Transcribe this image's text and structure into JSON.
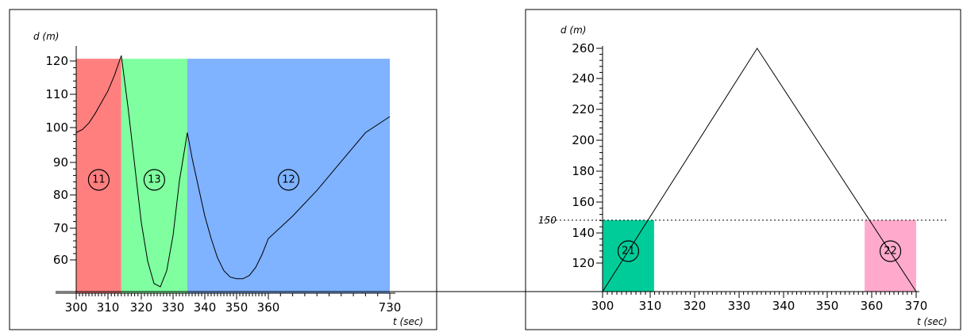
{
  "chart_data": [
    {
      "type": "line",
      "xlabel": "t (sec)",
      "ylabel": "d (m)",
      "xlim": [
        300,
        730
      ],
      "ylim": [
        50,
        125
      ],
      "x_tick_labels": [
        "300",
        "310",
        "320",
        "330",
        "340",
        "350",
        "360",
        "730"
      ],
      "y_tick_labels": [
        "60",
        "70",
        "80",
        "90",
        "100",
        "110",
        "120"
      ],
      "regions": [
        {
          "label": "11",
          "from": 300,
          "to": 314,
          "color": "#ff7f7f",
          "ymax": 123
        },
        {
          "label": "13",
          "from": 314,
          "to": 334.5,
          "color": "#7fff9f",
          "ymax": 123
        },
        {
          "label": "12",
          "from": 334.5,
          "to": 370,
          "color": "#7fb2ff",
          "ymax": 123
        }
      ],
      "series": [
        {
          "x": [
            300,
            302,
            304,
            306,
            308,
            310,
            312,
            314,
            316,
            318,
            320,
            322,
            324,
            326,
            328,
            330,
            332,
            334.5,
            336,
            338,
            340,
            342,
            344,
            346,
            348,
            350,
            352,
            354,
            356,
            358,
            360,
            362,
            364,
            366,
            368,
            370
          ],
          "y": [
            100,
            101,
            103,
            106,
            109.5,
            113,
            118,
            124,
            108,
            90,
            72,
            60,
            53,
            52,
            57,
            68,
            85,
            100,
            92,
            83,
            74,
            67,
            61,
            57,
            55,
            54.5,
            54.5,
            55.5,
            58,
            62,
            67,
            74,
            82,
            91,
            100,
            105
          ]
        }
      ]
    },
    {
      "type": "line",
      "xlabel": "t (sec)",
      "ylabel": "d (m)",
      "xlim": [
        297.5,
        372
      ],
      "ylim": [
        100,
        268
      ],
      "x_tick_labels": [
        "300",
        "310",
        "320",
        "330",
        "340",
        "350",
        "360",
        "370"
      ],
      "y_tick_labels": [
        "120",
        "140",
        "160",
        "180",
        "200",
        "220",
        "240",
        "260"
      ],
      "reference_line": {
        "y": 150,
        "label": "150"
      },
      "regions": [
        {
          "label": "21",
          "from": 300,
          "to": 311.5,
          "color": "#00cc99",
          "ymax": 150
        },
        {
          "label": "22",
          "from": 358.5,
          "to": 370,
          "color": "#ffaacc",
          "ymax": 150
        }
      ],
      "series": [
        {
          "x": [
            297.5,
            300,
            334.5,
            370
          ],
          "y": [
            103,
            103,
            263,
            103
          ]
        }
      ]
    }
  ]
}
